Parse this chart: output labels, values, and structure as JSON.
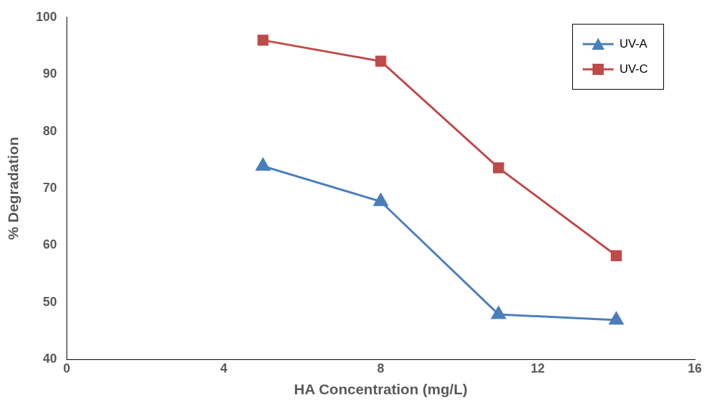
{
  "chart_data": {
    "type": "line",
    "xlabel": "HA Concentration (mg/L)",
    "ylabel": "% Degradation",
    "xlim": [
      0,
      16
    ],
    "xticks": [
      0,
      4,
      8,
      12,
      16
    ],
    "ylim": [
      40,
      100
    ],
    "yticks": [
      40,
      50,
      60,
      70,
      80,
      90,
      100
    ],
    "grid": false,
    "legend": "top right",
    "series": [
      {
        "name": "UV-A",
        "color": "#4a7ebb",
        "marker": "triangle",
        "x": [
          5,
          8,
          11,
          14
        ],
        "values": [
          73.9,
          67.7,
          47.9,
          46.9
        ]
      },
      {
        "name": "UV-C",
        "color": "#be4b48",
        "marker": "square",
        "x": [
          5,
          8,
          11,
          14
        ],
        "values": [
          96,
          92.3,
          73.6,
          58.2
        ]
      }
    ]
  }
}
